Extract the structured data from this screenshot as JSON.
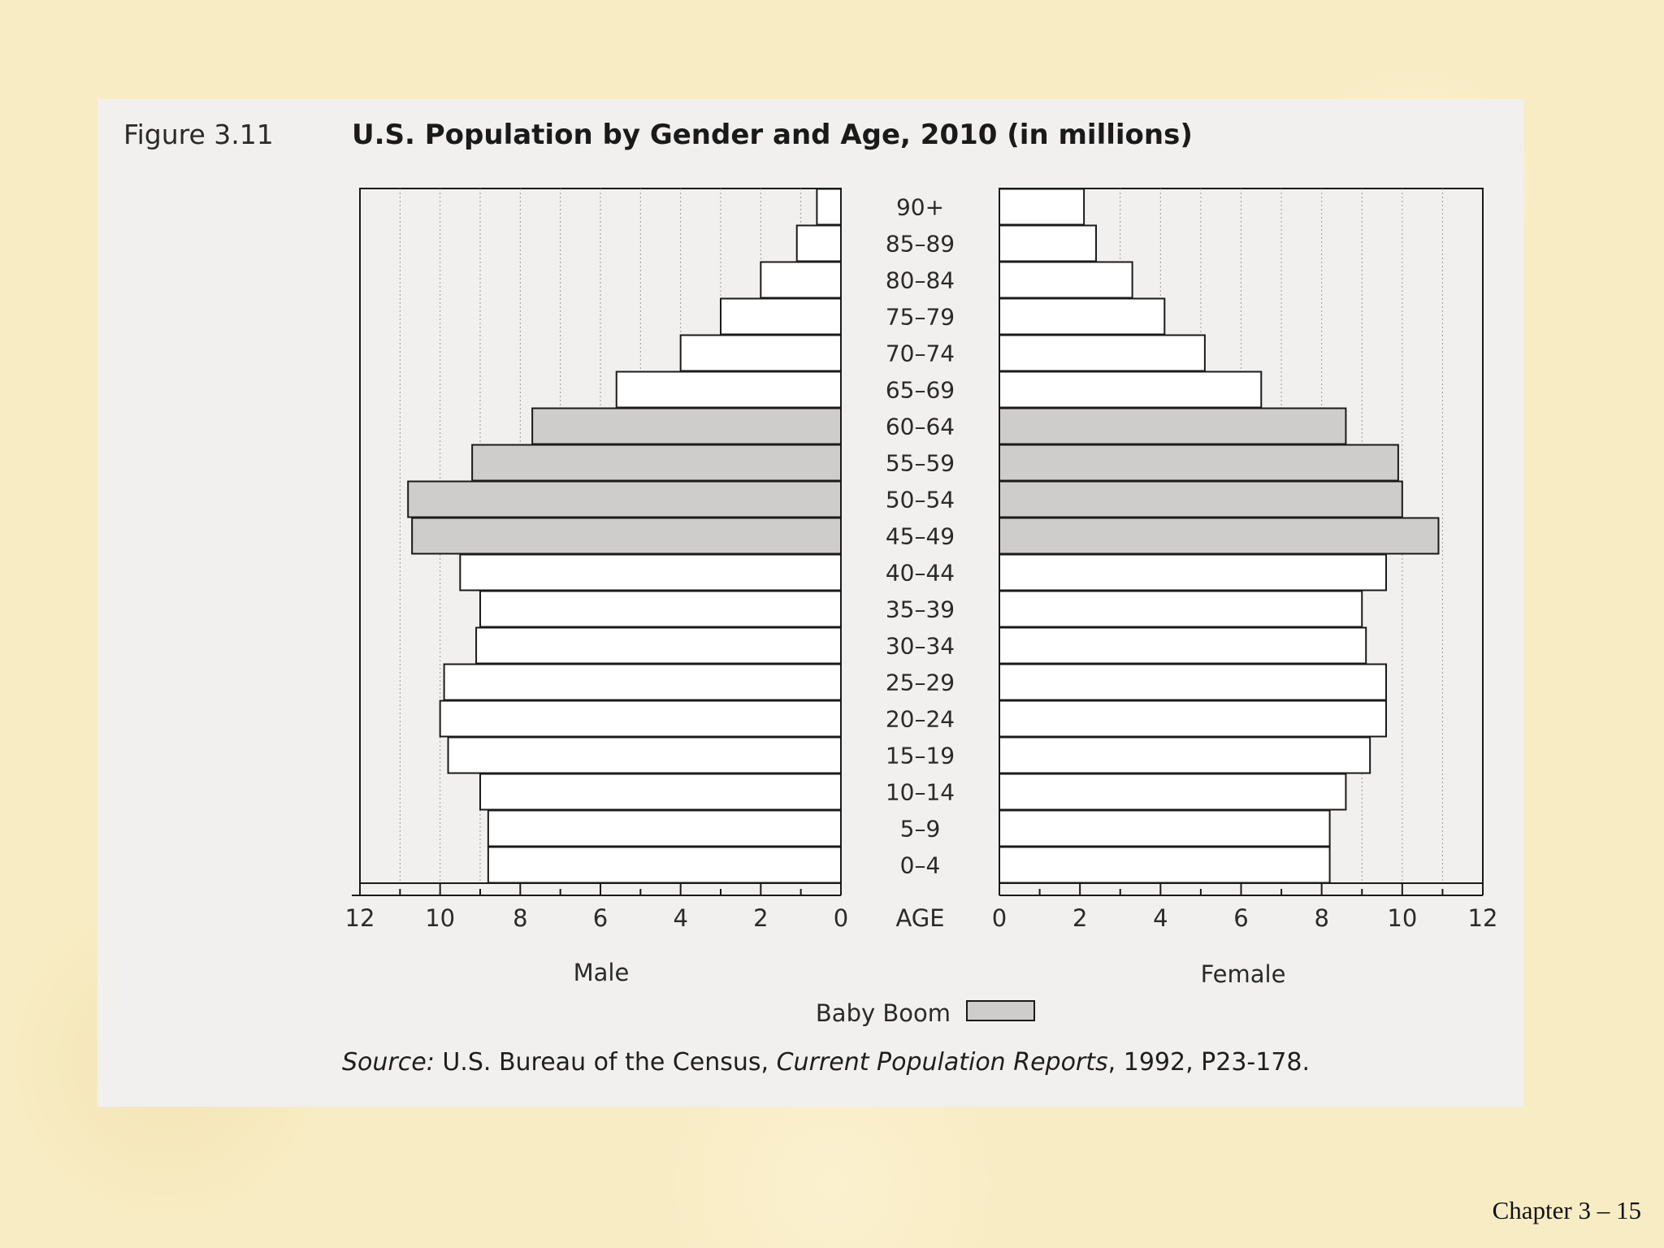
{
  "figure": {
    "label": "Figure 3.11",
    "title": "U.S. Population by Gender and Age, 2010 (in millions)"
  },
  "chart_data": {
    "type": "bar",
    "orientation": "horizontal-back-to-back",
    "title": "U.S. Population by Gender and Age, 2010 (in millions)",
    "center_axis_label": "AGE",
    "categories": [
      "0–4",
      "5–9",
      "10–14",
      "15–19",
      "20–24",
      "25–29",
      "30–34",
      "35–39",
      "40–44",
      "45–49",
      "50–54",
      "55–59",
      "60–64",
      "65–69",
      "70–74",
      "75–79",
      "80–84",
      "85–89",
      "90+"
    ],
    "series": [
      {
        "name": "Male",
        "values": [
          8.8,
          8.8,
          9.0,
          9.8,
          10.0,
          9.9,
          9.1,
          9.0,
          9.5,
          10.7,
          10.8,
          9.2,
          7.7,
          5.6,
          4.0,
          3.0,
          2.0,
          1.1,
          0.6
        ],
        "baby_boom": [
          false,
          false,
          false,
          false,
          false,
          false,
          false,
          false,
          false,
          true,
          true,
          true,
          true,
          false,
          false,
          false,
          false,
          false,
          false
        ]
      },
      {
        "name": "Female",
        "values": [
          8.2,
          8.2,
          8.6,
          9.2,
          9.6,
          9.6,
          9.1,
          9.0,
          9.6,
          10.9,
          10.0,
          9.9,
          8.6,
          6.5,
          5.1,
          4.1,
          3.3,
          2.4,
          2.1
        ],
        "baby_boom": [
          false,
          false,
          false,
          false,
          false,
          false,
          false,
          false,
          false,
          true,
          true,
          true,
          true,
          false,
          false,
          false,
          false,
          false,
          false
        ]
      }
    ],
    "xlim": [
      0,
      12
    ],
    "x_ticks": [
      0,
      2,
      4,
      6,
      8,
      10,
      12
    ],
    "legend": {
      "label": "Baby Boom",
      "placement": "bottom-center"
    },
    "colors": {
      "normal_bar": "#ffffff",
      "baby_boom_bar": "#cfcccc",
      "outline": "#1a1a1a"
    }
  },
  "source": {
    "prefix": "Source:",
    "publisher": " U.S. Bureau of the Census, ",
    "report": "Current Population Reports",
    "suffix": ", 1992, P23-178."
  },
  "footer": "Chapter 3 – 15"
}
